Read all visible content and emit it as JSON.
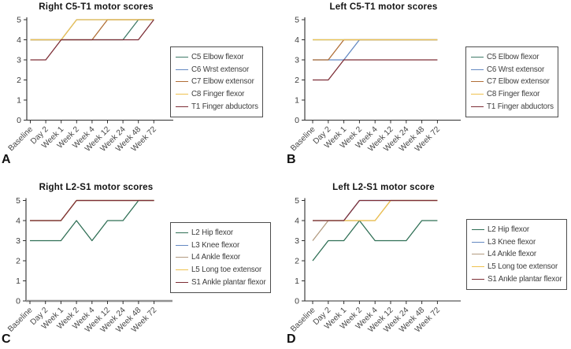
{
  "chart_data": [
    {
      "type": "line",
      "panel_label": "A",
      "title": "Right C5-T1 motor scores",
      "categories": [
        "Baseline",
        "Day 2",
        "Week 1",
        "Week 2",
        "Week 4",
        "Week 12",
        "Week 24",
        "Week 48",
        "Week 72"
      ],
      "yticks": [
        0,
        1,
        2,
        3,
        4,
        5
      ],
      "ylim": [
        0,
        5
      ],
      "grid": false,
      "legend_position": "right",
      "series": [
        {
          "name": "C5 Elbow flexor",
          "color": "#3f7a68",
          "values": [
            4,
            4,
            4,
            4,
            4,
            4,
            4,
            5,
            5
          ]
        },
        {
          "name": "C6 Wrst extensor",
          "color": "#6489c2",
          "values": [
            4,
            4,
            4,
            5,
            5,
            5,
            5,
            5,
            5
          ]
        },
        {
          "name": "C7 Elbow extensor",
          "color": "#b06f37",
          "values": [
            4,
            4,
            4,
            4,
            4,
            5,
            5,
            5,
            5
          ]
        },
        {
          "name": "C8 Finger flexor",
          "color": "#efc24f",
          "values": [
            4,
            4,
            4,
            5,
            5,
            5,
            5,
            5,
            5
          ]
        },
        {
          "name": "T1 Finger abductors",
          "color": "#7d2e36",
          "values": [
            3,
            3,
            4,
            4,
            4,
            4,
            4,
            4,
            5
          ]
        }
      ]
    },
    {
      "type": "line",
      "panel_label": "B",
      "title": "Left C5-T1 motor scores",
      "categories": [
        "Baseline",
        "Day 2",
        "Week 1",
        "Week 2",
        "Week 4",
        "Week 12",
        "Week 24",
        "Week 48",
        "Week 72"
      ],
      "yticks": [
        0,
        1,
        2,
        3,
        4,
        5
      ],
      "ylim": [
        0,
        5
      ],
      "grid": false,
      "legend_position": "right",
      "series": [
        {
          "name": "C5 Elbow flexor",
          "color": "#3f7a68",
          "values": [
            4,
            4,
            4,
            4,
            4,
            4,
            4,
            4,
            4
          ]
        },
        {
          "name": "C6 Wrst extensor",
          "color": "#6489c2",
          "values": [
            3,
            3,
            3,
            4,
            4,
            4,
            4,
            4,
            4
          ]
        },
        {
          "name": "C7 Elbow extensor",
          "color": "#b06f37",
          "values": [
            3,
            3,
            4,
            4,
            4,
            4,
            4,
            4,
            4
          ]
        },
        {
          "name": "C8 Finger flexor",
          "color": "#efc24f",
          "values": [
            4,
            4,
            4,
            4,
            4,
            4,
            4,
            4,
            4
          ]
        },
        {
          "name": "T1 Finger abductors",
          "color": "#7d2e36",
          "values": [
            2,
            2,
            3,
            3,
            3,
            3,
            3,
            3,
            3
          ]
        }
      ]
    },
    {
      "type": "line",
      "panel_label": "C",
      "title": "Right L2-S1 motor scores",
      "categories": [
        "Baseline",
        "Day 2",
        "Week 1",
        "Week 2",
        "Week 4",
        "Week 12",
        "Week 24",
        "Week 48",
        "Week 72"
      ],
      "yticks": [
        0,
        1,
        2,
        3,
        4,
        5
      ],
      "ylim": [
        0,
        5
      ],
      "grid": false,
      "legend_position": "right",
      "x_axis_style": "thick-gray",
      "series": [
        {
          "name": "L2 Hip flexor",
          "color": "#2f6f55",
          "values": [
            3,
            3,
            3,
            4,
            3,
            4,
            4,
            5,
            5
          ]
        },
        {
          "name": "L3 Knee flexor",
          "color": "#6489c2",
          "values": [
            4,
            4,
            4,
            5,
            5,
            5,
            5,
            5,
            5
          ]
        },
        {
          "name": "L4 Ankle flexor",
          "color": "#b39b80",
          "values": [
            4,
            4,
            4,
            5,
            5,
            5,
            5,
            5,
            5
          ]
        },
        {
          "name": "L5 Long toe extensor",
          "color": "#efc24f",
          "values": [
            4,
            4,
            4,
            5,
            5,
            5,
            5,
            5,
            5
          ]
        },
        {
          "name": "S1 Ankle plantar flexor",
          "color": "#7d2e36",
          "values": [
            4,
            4,
            4,
            5,
            5,
            5,
            5,
            5,
            5
          ]
        }
      ]
    },
    {
      "type": "line",
      "panel_label": "D",
      "title": "Left L2-S1 motor score",
      "categories": [
        "Baseline",
        "Day 2",
        "Week 1",
        "Week 2",
        "Week 4",
        "Week 12",
        "Week 24",
        "Week 48",
        "Week 72"
      ],
      "yticks": [
        0,
        1,
        2,
        3,
        4,
        5
      ],
      "ylim": [
        0,
        5
      ],
      "grid": false,
      "legend_position": "right",
      "series": [
        {
          "name": "L2 Hip flexor",
          "color": "#2f6f55",
          "values": [
            2,
            3,
            3,
            4,
            3,
            3,
            3,
            4,
            4
          ]
        },
        {
          "name": "L3 Knee flexor",
          "color": "#6489c2",
          "values": [
            4,
            4,
            4,
            5,
            5,
            5,
            5,
            5,
            5
          ]
        },
        {
          "name": "L4 Ankle flexor",
          "color": "#b39b80",
          "values": [
            3,
            4,
            4,
            4,
            4,
            5,
            5,
            5,
            5
          ]
        },
        {
          "name": "L5 Long toe extensor",
          "color": "#efc24f",
          "values": [
            4,
            4,
            4,
            4,
            4,
            5,
            5,
            5,
            5
          ]
        },
        {
          "name": "S1 Ankle plantar flexor",
          "color": "#7d2e36",
          "values": [
            4,
            4,
            4,
            5,
            5,
            5,
            5,
            5,
            5
          ]
        }
      ]
    }
  ]
}
